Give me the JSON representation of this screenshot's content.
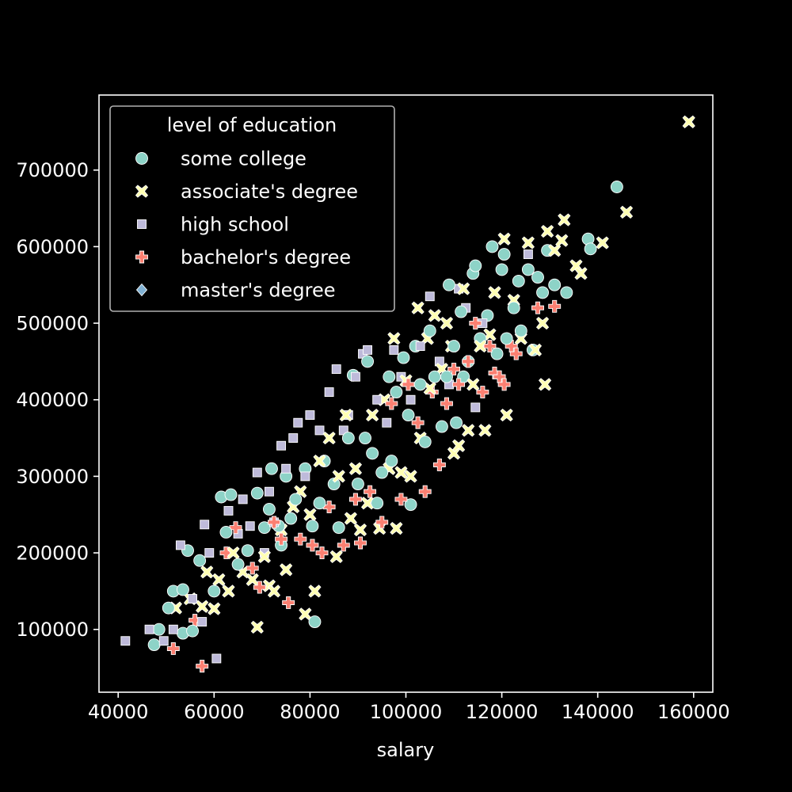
{
  "chart_data": {
    "type": "scatter",
    "title": "",
    "xlabel": "salary",
    "ylabel": "",
    "xlim": [
      36000,
      164000
    ],
    "ylim": [
      18000,
      798000
    ],
    "xticks": [
      40000,
      60000,
      80000,
      100000,
      120000,
      140000,
      160000
    ],
    "yticks": [
      100000,
      200000,
      300000,
      400000,
      500000,
      600000,
      700000
    ],
    "xtick_labels": [
      "40000",
      "60000",
      "80000",
      "100000",
      "120000",
      "140000",
      "160000"
    ],
    "ytick_labels": [
      "100000",
      "200000",
      "300000",
      "400000",
      "500000",
      "600000",
      "700000"
    ],
    "grid": false,
    "legend": {
      "title": "level of education",
      "position": "top-left"
    },
    "series": [
      {
        "name": "some college",
        "marker": "circle",
        "color": "#8dd3c7",
        "points": [
          [
            47500,
            80000
          ],
          [
            48500,
            100000
          ],
          [
            50500,
            128000
          ],
          [
            51500,
            150000
          ],
          [
            53500,
            95000
          ],
          [
            53500,
            152000
          ],
          [
            54500,
            203000
          ],
          [
            55500,
            98000
          ],
          [
            57000,
            190000
          ],
          [
            60000,
            150000
          ],
          [
            61500,
            273000
          ],
          [
            62500,
            227000
          ],
          [
            63500,
            276000
          ],
          [
            65000,
            185000
          ],
          [
            67000,
            203000
          ],
          [
            69000,
            278000
          ],
          [
            70500,
            233000
          ],
          [
            71500,
            257000
          ],
          [
            72000,
            310000
          ],
          [
            73500,
            235000
          ],
          [
            74000,
            210000
          ],
          [
            75000,
            300000
          ],
          [
            76000,
            245000
          ],
          [
            77000,
            270000
          ],
          [
            79000,
            310000
          ],
          [
            80500,
            235000
          ],
          [
            81000,
            110000
          ],
          [
            82000,
            265000
          ],
          [
            83000,
            320000
          ],
          [
            85000,
            290000
          ],
          [
            86000,
            233000
          ],
          [
            88000,
            350000
          ],
          [
            89000,
            432000
          ],
          [
            90000,
            290000
          ],
          [
            91500,
            350000
          ],
          [
            92000,
            450000
          ],
          [
            93000,
            330000
          ],
          [
            94000,
            265000
          ],
          [
            95000,
            305000
          ],
          [
            96500,
            430000
          ],
          [
            97000,
            320000
          ],
          [
            98000,
            410000
          ],
          [
            99500,
            455000
          ],
          [
            100500,
            380000
          ],
          [
            101000,
            263000
          ],
          [
            102000,
            470000
          ],
          [
            103000,
            420000
          ],
          [
            104000,
            345000
          ],
          [
            105000,
            490000
          ],
          [
            106000,
            430000
          ],
          [
            107500,
            365000
          ],
          [
            108500,
            430000
          ],
          [
            109000,
            550000
          ],
          [
            110000,
            470000
          ],
          [
            110500,
            370000
          ],
          [
            111500,
            515000
          ],
          [
            112000,
            430000
          ],
          [
            113000,
            450000
          ],
          [
            114000,
            565000
          ],
          [
            114500,
            575000
          ],
          [
            115500,
            480000
          ],
          [
            117000,
            510000
          ],
          [
            118000,
            600000
          ],
          [
            119000,
            460000
          ],
          [
            120000,
            570000
          ],
          [
            120500,
            590000
          ],
          [
            121000,
            480000
          ],
          [
            122500,
            520000
          ],
          [
            123500,
            555000
          ],
          [
            124000,
            490000
          ],
          [
            125500,
            570000
          ],
          [
            126500,
            465000
          ],
          [
            127500,
            560000
          ],
          [
            128500,
            540000
          ],
          [
            129500,
            595000
          ],
          [
            131000,
            550000
          ],
          [
            133500,
            540000
          ],
          [
            138000,
            610000
          ],
          [
            138500,
            597000
          ],
          [
            144000,
            678000
          ]
        ]
      },
      {
        "name": "associate's degree",
        "marker": "x",
        "color": "#ffffb3",
        "points": [
          [
            52000,
            128000
          ],
          [
            55000,
            140000
          ],
          [
            57500,
            130000
          ],
          [
            58500,
            175000
          ],
          [
            60000,
            127000
          ],
          [
            61000,
            165000
          ],
          [
            63000,
            150000
          ],
          [
            64000,
            200000
          ],
          [
            66000,
            175000
          ],
          [
            68000,
            165000
          ],
          [
            69000,
            103000
          ],
          [
            70500,
            195000
          ],
          [
            71500,
            157000
          ],
          [
            72500,
            150000
          ],
          [
            74000,
            230000
          ],
          [
            75000,
            178000
          ],
          [
            76500,
            260000
          ],
          [
            78000,
            280000
          ],
          [
            79000,
            120000
          ],
          [
            80000,
            250000
          ],
          [
            81000,
            150000
          ],
          [
            82000,
            320000
          ],
          [
            84000,
            350000
          ],
          [
            85500,
            195000
          ],
          [
            86000,
            300000
          ],
          [
            87500,
            380000
          ],
          [
            88500,
            245000
          ],
          [
            89500,
            310000
          ],
          [
            90500,
            230000
          ],
          [
            92000,
            265000
          ],
          [
            93000,
            380000
          ],
          [
            94500,
            232000
          ],
          [
            95500,
            400000
          ],
          [
            96500,
            310000
          ],
          [
            97500,
            480000
          ],
          [
            98000,
            232000
          ],
          [
            99000,
            305000
          ],
          [
            100000,
            425000
          ],
          [
            101000,
            300000
          ],
          [
            102500,
            520000
          ],
          [
            103000,
            350000
          ],
          [
            104500,
            480000
          ],
          [
            105000,
            415000
          ],
          [
            106000,
            510000
          ],
          [
            107500,
            440000
          ],
          [
            108500,
            500000
          ],
          [
            109500,
            470000
          ],
          [
            110000,
            330000
          ],
          [
            111000,
            340000
          ],
          [
            112000,
            545000
          ],
          [
            113000,
            360000
          ],
          [
            114000,
            420000
          ],
          [
            115500,
            470000
          ],
          [
            116500,
            360000
          ],
          [
            117500,
            485000
          ],
          [
            118500,
            540000
          ],
          [
            120500,
            610000
          ],
          [
            121000,
            380000
          ],
          [
            122500,
            530000
          ],
          [
            124000,
            480000
          ],
          [
            125500,
            605000
          ],
          [
            127000,
            465000
          ],
          [
            128500,
            500000
          ],
          [
            129000,
            420000
          ],
          [
            129500,
            620000
          ],
          [
            131000,
            595000
          ],
          [
            132500,
            608000
          ],
          [
            133000,
            635000
          ],
          [
            135500,
            575000
          ],
          [
            136500,
            565000
          ],
          [
            141000,
            605000
          ],
          [
            146000,
            645000
          ],
          [
            159000,
            763000
          ]
        ]
      },
      {
        "name": "high school",
        "marker": "square",
        "color": "#bebada",
        "points": [
          [
            41500,
            85000
          ],
          [
            46500,
            100000
          ],
          [
            49500,
            85000
          ],
          [
            51500,
            100000
          ],
          [
            53000,
            210000
          ],
          [
            55500,
            140000
          ],
          [
            57500,
            110000
          ],
          [
            58000,
            237000
          ],
          [
            59000,
            200000
          ],
          [
            60500,
            62000
          ],
          [
            63000,
            255000
          ],
          [
            65000,
            225000
          ],
          [
            66000,
            270000
          ],
          [
            67500,
            235000
          ],
          [
            69000,
            305000
          ],
          [
            70500,
            200000
          ],
          [
            71500,
            280000
          ],
          [
            72500,
            240000
          ],
          [
            74000,
            340000
          ],
          [
            75000,
            310000
          ],
          [
            76500,
            350000
          ],
          [
            77500,
            370000
          ],
          [
            79000,
            300000
          ],
          [
            80000,
            380000
          ],
          [
            82000,
            360000
          ],
          [
            84000,
            410000
          ],
          [
            85500,
            440000
          ],
          [
            87000,
            360000
          ],
          [
            88000,
            380000
          ],
          [
            89500,
            430000
          ],
          [
            91000,
            460000
          ],
          [
            92000,
            465000
          ],
          [
            94000,
            400000
          ],
          [
            96000,
            370000
          ],
          [
            97500,
            465000
          ],
          [
            99000,
            430000
          ],
          [
            101000,
            400000
          ],
          [
            103000,
            470000
          ],
          [
            105000,
            535000
          ],
          [
            107000,
            450000
          ],
          [
            109000,
            420000
          ],
          [
            111000,
            545000
          ],
          [
            112500,
            520000
          ],
          [
            114500,
            390000
          ],
          [
            116000,
            500000
          ],
          [
            125500,
            590000
          ]
        ]
      },
      {
        "name": "bachelor's degree",
        "marker": "plus",
        "color": "#fb8072",
        "points": [
          [
            51500,
            75000
          ],
          [
            56000,
            112000
          ],
          [
            57500,
            52000
          ],
          [
            62500,
            200000
          ],
          [
            64500,
            233000
          ],
          [
            68000,
            180000
          ],
          [
            69500,
            155000
          ],
          [
            72500,
            240000
          ],
          [
            74000,
            218000
          ],
          [
            75500,
            135000
          ],
          [
            78000,
            218000
          ],
          [
            80500,
            210000
          ],
          [
            82500,
            200000
          ],
          [
            84000,
            260000
          ],
          [
            87000,
            210000
          ],
          [
            89500,
            270000
          ],
          [
            90500,
            213000
          ],
          [
            92500,
            280000
          ],
          [
            95000,
            240000
          ],
          [
            97000,
            395000
          ],
          [
            99000,
            270000
          ],
          [
            100500,
            420000
          ],
          [
            102500,
            370000
          ],
          [
            104000,
            280000
          ],
          [
            105500,
            410000
          ],
          [
            107000,
            315000
          ],
          [
            108500,
            395000
          ],
          [
            110000,
            440000
          ],
          [
            111000,
            420000
          ],
          [
            113000,
            450000
          ],
          [
            114500,
            500000
          ],
          [
            116000,
            410000
          ],
          [
            117500,
            470000
          ],
          [
            118500,
            435000
          ],
          [
            119500,
            430000
          ],
          [
            120500,
            420000
          ],
          [
            122000,
            470000
          ],
          [
            123000,
            460000
          ],
          [
            127500,
            520000
          ],
          [
            131000,
            522000
          ]
        ]
      },
      {
        "name": "master's degree",
        "marker": "diamond",
        "color": "#80b1d3",
        "points": []
      }
    ]
  }
}
